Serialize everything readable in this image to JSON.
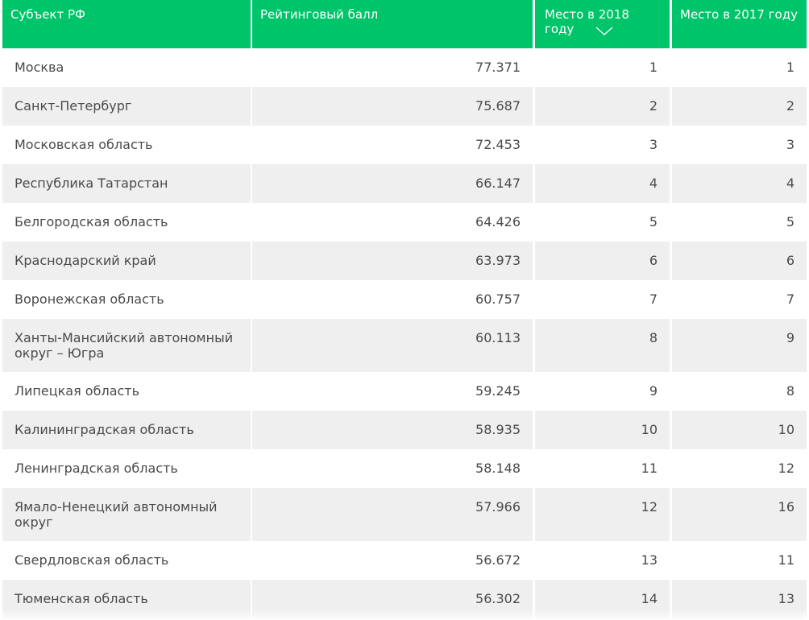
{
  "header": {
    "col_region": "Субъект РФ",
    "col_score": "Рейтинговый балл",
    "col_place_2018": "Место в 2018 году",
    "col_place_2017": "Место в 2017 году",
    "sorted_column": "col_place_2018",
    "sort_icon": "chevron-down-icon",
    "accent_color": "#00c46a"
  },
  "rows": [
    {
      "region": "Москва",
      "score": "77.371",
      "place_2018": "1",
      "place_2017": "1"
    },
    {
      "region": "Санкт-Петербург",
      "score": "75.687",
      "place_2018": "2",
      "place_2017": "2"
    },
    {
      "region": "Московская область",
      "score": "72.453",
      "place_2018": "3",
      "place_2017": "3"
    },
    {
      "region": "Республика Татарстан",
      "score": "66.147",
      "place_2018": "4",
      "place_2017": "4"
    },
    {
      "region": "Белгородская область",
      "score": "64.426",
      "place_2018": "5",
      "place_2017": "5"
    },
    {
      "region": "Краснодарский край",
      "score": "63.973",
      "place_2018": "6",
      "place_2017": "6"
    },
    {
      "region": "Воронежская область",
      "score": "60.757",
      "place_2018": "7",
      "place_2017": "7"
    },
    {
      "region": "Ханты-Мансийский автономный округ – Югра",
      "score": "60.113",
      "place_2018": "8",
      "place_2017": "9"
    },
    {
      "region": "Липецкая область",
      "score": "59.245",
      "place_2018": "9",
      "place_2017": "8"
    },
    {
      "region": "Калининградская область",
      "score": "58.935",
      "place_2018": "10",
      "place_2017": "10"
    },
    {
      "region": "Ленинградская область",
      "score": "58.148",
      "place_2018": "11",
      "place_2017": "12"
    },
    {
      "region": "Ямало-Ненецкий автономный округ",
      "score": "57.966",
      "place_2018": "12",
      "place_2017": "16"
    },
    {
      "region": "Свердловская область",
      "score": "56.672",
      "place_2018": "13",
      "place_2017": "11"
    },
    {
      "region": "Тюменская область",
      "score": "56.302",
      "place_2018": "14",
      "place_2017": "13"
    }
  ]
}
